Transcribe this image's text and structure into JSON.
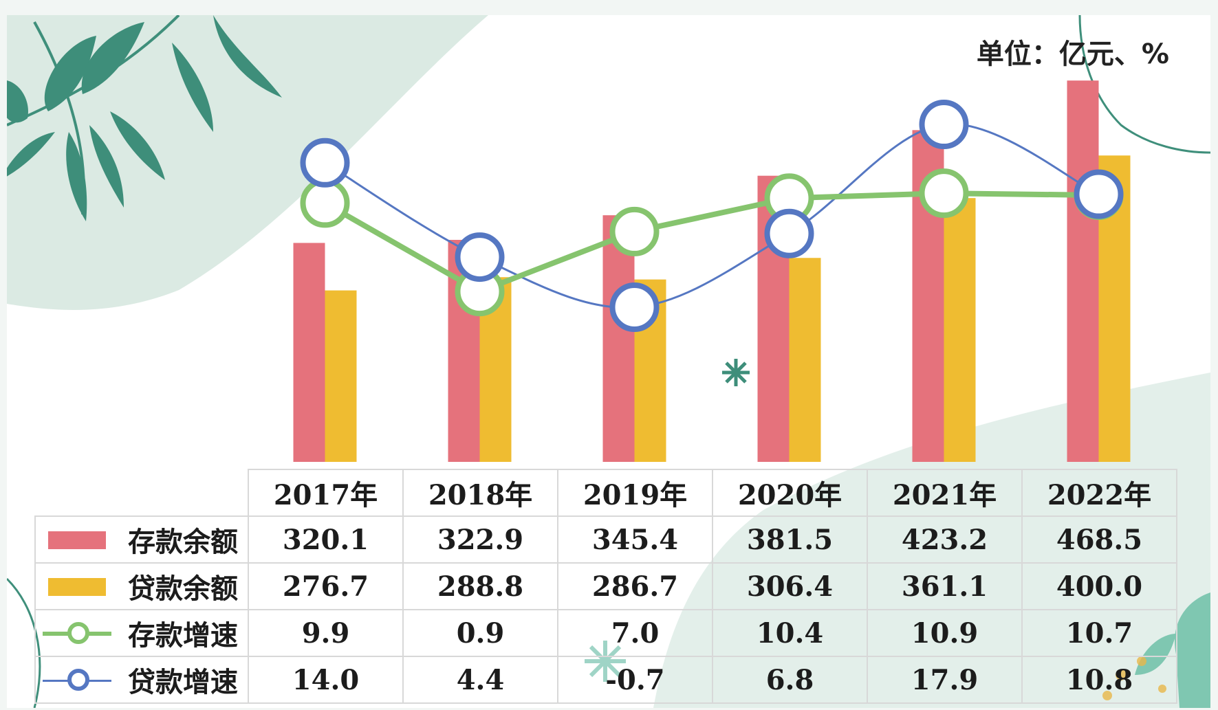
{
  "unit_label": "单位：亿元、%",
  "colors": {
    "deposit_balance": "#e5727c",
    "loan_balance": "#efbc31",
    "deposit_growth": "#86c46e",
    "loan_growth": "#5577c2"
  },
  "chart_data": {
    "type": "bar+line",
    "categories": [
      "2017年",
      "2018年",
      "2019年",
      "2020年",
      "2021年",
      "2022年"
    ],
    "series": [
      {
        "name": "存款余额",
        "kind": "bar",
        "values": [
          320.1,
          322.9,
          345.4,
          381.5,
          423.2,
          468.5
        ]
      },
      {
        "name": "贷款余额",
        "kind": "bar",
        "values": [
          276.7,
          288.8,
          286.7,
          306.4,
          361.1,
          400.0
        ]
      },
      {
        "name": "存款增速",
        "kind": "line",
        "values": [
          9.9,
          0.9,
          7.0,
          10.4,
          10.9,
          10.7
        ]
      },
      {
        "name": "贷款增速",
        "kind": "line",
        "values": [
          14.0,
          4.4,
          -0.7,
          6.8,
          17.9,
          10.8
        ]
      }
    ],
    "table_values": [
      [
        "320.1",
        "322.9",
        "345.4",
        "381.5",
        "423.2",
        "468.5"
      ],
      [
        "276.7",
        "288.8",
        "286.7",
        "306.4",
        "361.1",
        "400.0"
      ],
      [
        "9.9",
        "0.9",
        "7.0",
        "10.4",
        "10.9",
        "10.7"
      ],
      [
        "14.0",
        "4.4",
        "-0.7",
        "6.8",
        "17.9",
        "10.8"
      ]
    ],
    "legend": "table-rows",
    "grid": false
  }
}
